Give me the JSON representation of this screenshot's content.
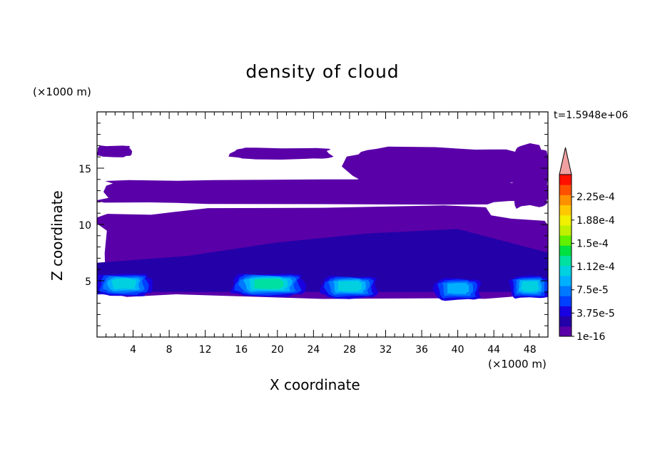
{
  "chart_data": {
    "type": "heatmap",
    "title": "density of cloud",
    "xlabel": "X coordinate",
    "ylabel": "Z coordinate",
    "x_unit": "(×1000 m)",
    "y_unit": "(×1000 m)",
    "timestamp": "t=1.5948e+06",
    "xlim": [
      0,
      50
    ],
    "ylim": [
      0,
      20
    ],
    "x_ticks": [
      4,
      8,
      12,
      16,
      20,
      24,
      28,
      32,
      36,
      40,
      44,
      48
    ],
    "y_ticks": [
      5,
      10,
      15
    ],
    "colorbar": {
      "labels": [
        "1e-16",
        "3.75e-5",
        "7.5e-5",
        "1.12e-4",
        "1.5e-4",
        "1.88e-4",
        "2.25e-4"
      ],
      "levels": [
        1e-16,
        3.75e-05,
        7.5e-05,
        0.0001125,
        0.00015,
        0.0001875,
        0.000225,
        0.00024
      ],
      "colors": [
        "#5a00a8",
        "#2400a8",
        "#1800e0",
        "#0040ff",
        "#0078ff",
        "#00b0ff",
        "#00d0e0",
        "#00e0a0",
        "#00e040",
        "#60f000",
        "#c0f000",
        "#f0f000",
        "#ffc800",
        "#ff9000",
        "#ff5000",
        "#ff1000",
        "#f0a0a0"
      ],
      "extend": "max"
    },
    "features": [
      {
        "type": "cloud-layer",
        "x_range": [
          0,
          50
        ],
        "z_range": [
          3.4,
          11.5
        ],
        "level": 1
      },
      {
        "type": "cloud-layer",
        "x_range": [
          0,
          50
        ],
        "z_range": [
          11.8,
          14.0
        ],
        "level": 1
      },
      {
        "type": "cloud-patch",
        "x_range": [
          0,
          3.8
        ],
        "z_range": [
          16.0,
          17.0
        ],
        "level": 1
      },
      {
        "type": "cloud-patch",
        "x_range": [
          15,
          26
        ],
        "z_range": [
          15.8,
          16.8
        ],
        "level": 1
      },
      {
        "type": "cloud-patch",
        "x_range": [
          28,
          47
        ],
        "z_range": [
          13.5,
          16.8
        ],
        "level": 1
      },
      {
        "type": "cloud-patch",
        "x_range": [
          46,
          50
        ],
        "z_range": [
          11.5,
          17.0
        ],
        "level": 1
      },
      {
        "type": "core",
        "x_center": 3,
        "z_center": 4.8,
        "width": 7,
        "peak": 6
      },
      {
        "type": "core",
        "x_center": 19,
        "z_center": 4.8,
        "width": 9,
        "peak": 7
      },
      {
        "type": "core",
        "x_center": 28,
        "z_center": 4.6,
        "width": 7,
        "peak": 6
      },
      {
        "type": "core",
        "x_center": 40,
        "z_center": 4.4,
        "width": 6,
        "peak": 5
      },
      {
        "type": "core",
        "x_center": 48,
        "z_center": 4.6,
        "width": 5,
        "peak": 6
      }
    ]
  }
}
